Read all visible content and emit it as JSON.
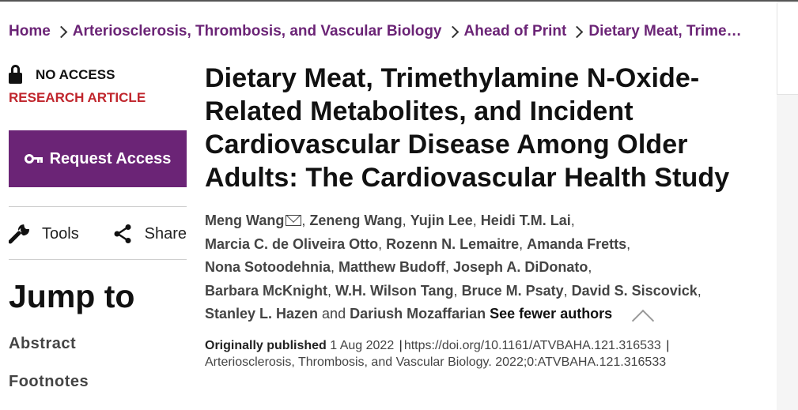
{
  "breadcrumb": {
    "items": [
      "Home",
      "Arteriosclerosis, Thrombosis, and Vascular Biology",
      "Ahead of Print",
      "Dietary Meat, Trime…"
    ]
  },
  "sidebar": {
    "access_label": "NO ACCESS",
    "article_type": "RESEARCH ARTICLE",
    "request_access_label": "Request Access",
    "tools_label": "Tools",
    "share_label": "Share",
    "jump_to_heading": "Jump to",
    "jump_links": [
      "Abstract",
      "Footnotes"
    ]
  },
  "article": {
    "title": "Dietary Meat, Trimethylamine N-Oxide-Related Metabolites, and Incident Cardiovascular Disease Among Older Adults: The Cardiovascular Health Study",
    "authors": [
      "Meng Wang",
      "Zeneng Wang",
      "Yujin Lee",
      "Heidi T.M. Lai",
      "Marcia C. de Oliveira Otto",
      "Rozenn N. Lemaitre",
      "Amanda Fretts",
      "Nona Sotoodehnia",
      "Matthew Budoff",
      "Joseph A. DiDonato",
      "Barbara McKnight",
      "W.H. Wilson Tang",
      "Bruce M. Psaty",
      "David S. Siscovick",
      "Stanley L. Hazen",
      "Dariush Mozaffarian"
    ],
    "author_separator": ", ",
    "author_and": " and ",
    "see_fewer_label": "See fewer authors",
    "published_label": "Originally published",
    "published_date": "1 Aug 2022",
    "doi": "https://doi.org/10.1161/ATVBAHA.121.316533",
    "citation": "Arteriosclerosis, Thrombosis, and Vascular Biology. 2022;0:ATVBAHA.121.316533"
  },
  "colors": {
    "brand_purple": "#6b2476",
    "article_type_red": "#c0262d"
  },
  "icons": [
    "lock-icon",
    "key-icon",
    "wrench-icon",
    "share-icon",
    "mail-icon",
    "chevron-up-icon",
    "chevron-right-icon"
  ]
}
